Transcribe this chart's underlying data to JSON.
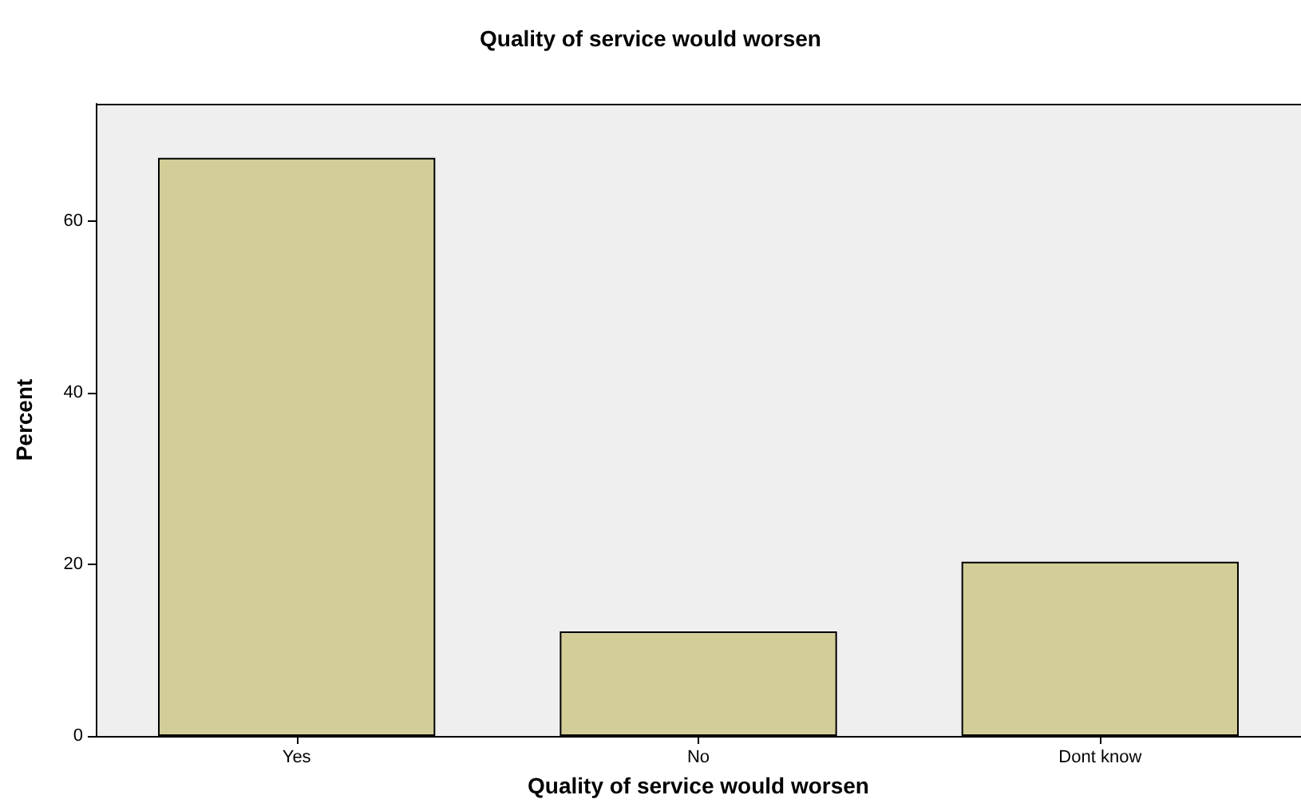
{
  "chart_data": {
    "type": "bar",
    "title": "Quality of service would worsen",
    "xlabel": "Quality of service would worsen",
    "ylabel": "Percent",
    "categories": [
      "Yes",
      "No",
      "Dont know"
    ],
    "values": [
      67.4,
      12.2,
      20.3
    ],
    "color": "#d3ce98",
    "ylim": [
      0,
      73.7
    ],
    "yticks": [
      0,
      20,
      40,
      60
    ],
    "grid": false
  }
}
